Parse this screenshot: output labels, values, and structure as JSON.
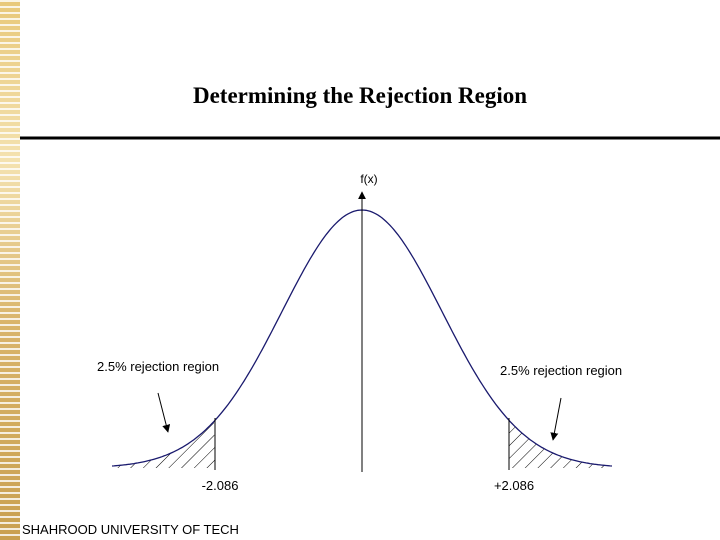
{
  "header": {
    "title": "Determining the Rejection Region"
  },
  "diagram": {
    "axis_label": "f(x)",
    "left_region": {
      "label": "2.5% rejection region",
      "critical_value": "-2.086"
    },
    "right_region": {
      "label": "2.5% rejection region",
      "critical_value": "+2.086"
    }
  },
  "footer": {
    "text": "SHAHROOD UNIVERSITY OF TECH"
  }
}
